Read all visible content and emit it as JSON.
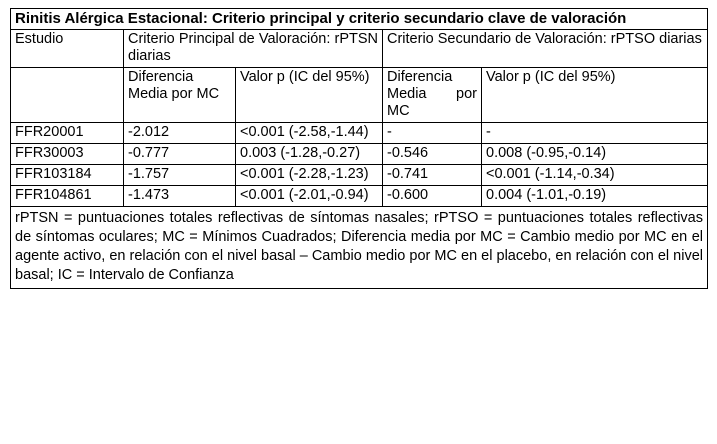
{
  "title": "Rinitis Alérgica Estacional: Criterio principal y criterio secundario clave de valoración",
  "headers": {
    "study": "Estudio",
    "primary_group": "Criterio Principal de Valoración: rPTSN diarias",
    "secondary_group": "Criterio Secundario de Valoración: rPTSO diarias",
    "mean_diff": "Diferencia Media por MC",
    "p_value": "Valor p (IC del 95%)"
  },
  "rows": [
    {
      "study": "FFR20001",
      "p_diff": "-2.012",
      "p_val": "<0.001 (-2.58,-1.44)",
      "s_diff": "-",
      "s_val": "-"
    },
    {
      "study": "FFR30003",
      "p_diff": "-0.777",
      "p_val": "0.003 (-1.28,-0.27)",
      "s_diff": "-0.546",
      "s_val": "0.008 (-0.95,-0.14)"
    },
    {
      "study": "FFR103184",
      "p_diff": "-1.757",
      "p_val": "<0.001 (-2.28,-1.23)",
      "s_diff": "-0.741",
      "s_val": "<0.001 (-1.14,-0.34)"
    },
    {
      "study": "FFR104861",
      "p_diff": "-1.473",
      "p_val": "<0.001 (-2.01,-0.94)",
      "s_diff": "-0.600",
      "s_val": "0.004 (-1.01,-0.19)"
    }
  ],
  "footnote": "rPTSN = puntuaciones totales reflectivas de síntomas nasales; rPTSO = puntuaciones totales reflectivas de síntomas oculares; MC = Mínimos Cuadrados; Diferencia media por MC = Cambio medio por MC en el agente activo, en relación con el nivel basal – Cambio medio por MC en el placebo, en relación con el nivel basal; IC = Intervalo de Confianza"
}
